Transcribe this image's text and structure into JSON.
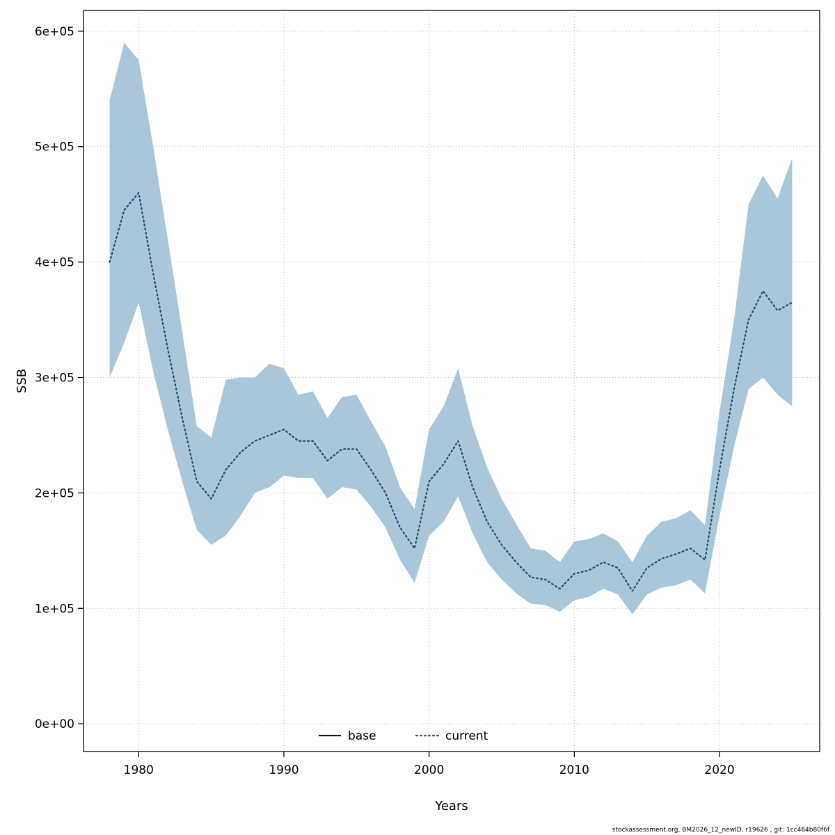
{
  "figure": {
    "footer": "stockassessment.org, BM2026_12_newID, r19626 , git: 1cc464b80f6f"
  },
  "chart_data": {
    "type": "line",
    "title": "",
    "xlabel": "Years",
    "ylabel": "SSB",
    "xlim": [
      1976.2,
      2026.9
    ],
    "ylim": [
      -24000,
      618000
    ],
    "x_ticks": [
      1980,
      1990,
      2000,
      2010,
      2020
    ],
    "y_ticks": [
      0,
      100000,
      200000,
      300000,
      400000,
      500000,
      600000
    ],
    "y_tick_labels": [
      "0e+00",
      "1e+05",
      "2e+05",
      "3e+05",
      "4e+05",
      "5e+05",
      "6e+05"
    ],
    "grid": true,
    "band_color": "#a9c7d8",
    "line_color": "#1c4f6e",
    "legend": [
      {
        "label": "base",
        "style": "solid",
        "color": "#000000"
      },
      {
        "label": "current",
        "style": "dotted",
        "color": "#1c4f6e"
      }
    ],
    "legend_position": "bottom-inside",
    "years": [
      1978,
      1979,
      1980,
      1981,
      1982,
      1983,
      1984,
      1985,
      1986,
      1987,
      1988,
      1989,
      1990,
      1991,
      1992,
      1993,
      1994,
      1995,
      1996,
      1997,
      1998,
      1999,
      2000,
      2001,
      2002,
      2003,
      2004,
      2005,
      2006,
      2007,
      2008,
      2009,
      2010,
      2011,
      2012,
      2013,
      2014,
      2015,
      2016,
      2017,
      2018,
      2019,
      2020,
      2021,
      2022,
      2023,
      2024,
      2025
    ],
    "series": [
      {
        "name": "current",
        "values": [
          400000,
          445000,
          460000,
          390000,
          325000,
          265000,
          210000,
          195000,
          220000,
          235000,
          245000,
          250000,
          255000,
          245000,
          245000,
          228000,
          238000,
          238000,
          220000,
          200000,
          170000,
          152000,
          210000,
          225000,
          245000,
          205000,
          175000,
          155000,
          140000,
          127000,
          125000,
          117000,
          130000,
          133000,
          140000,
          135000,
          115000,
          135000,
          143000,
          147000,
          152000,
          142000,
          220000,
          290000,
          350000,
          375000,
          358000,
          365000
        ]
      }
    ],
    "band_lower": [
      300000,
      330000,
      365000,
      305000,
      255000,
      210000,
      168000,
      155000,
      163000,
      180000,
      200000,
      205000,
      215000,
      213000,
      213000,
      195000,
      205000,
      203000,
      188000,
      170000,
      142000,
      122000,
      163000,
      175000,
      197000,
      165000,
      140000,
      125000,
      113000,
      104000,
      103000,
      97000,
      107000,
      110000,
      117000,
      112000,
      95000,
      112000,
      118000,
      120000,
      125000,
      113000,
      180000,
      240000,
      290000,
      300000,
      285000,
      275000
    ],
    "band_upper": [
      540000,
      590000,
      575000,
      500000,
      420000,
      340000,
      258000,
      248000,
      298000,
      300000,
      300000,
      312000,
      308000,
      285000,
      288000,
      265000,
      283000,
      285000,
      262000,
      240000,
      205000,
      186000,
      255000,
      275000,
      308000,
      258000,
      222000,
      195000,
      173000,
      152000,
      150000,
      140000,
      158000,
      160000,
      165000,
      158000,
      140000,
      163000,
      175000,
      178000,
      185000,
      172000,
      270000,
      350000,
      450000,
      475000,
      455000,
      490000
    ]
  }
}
